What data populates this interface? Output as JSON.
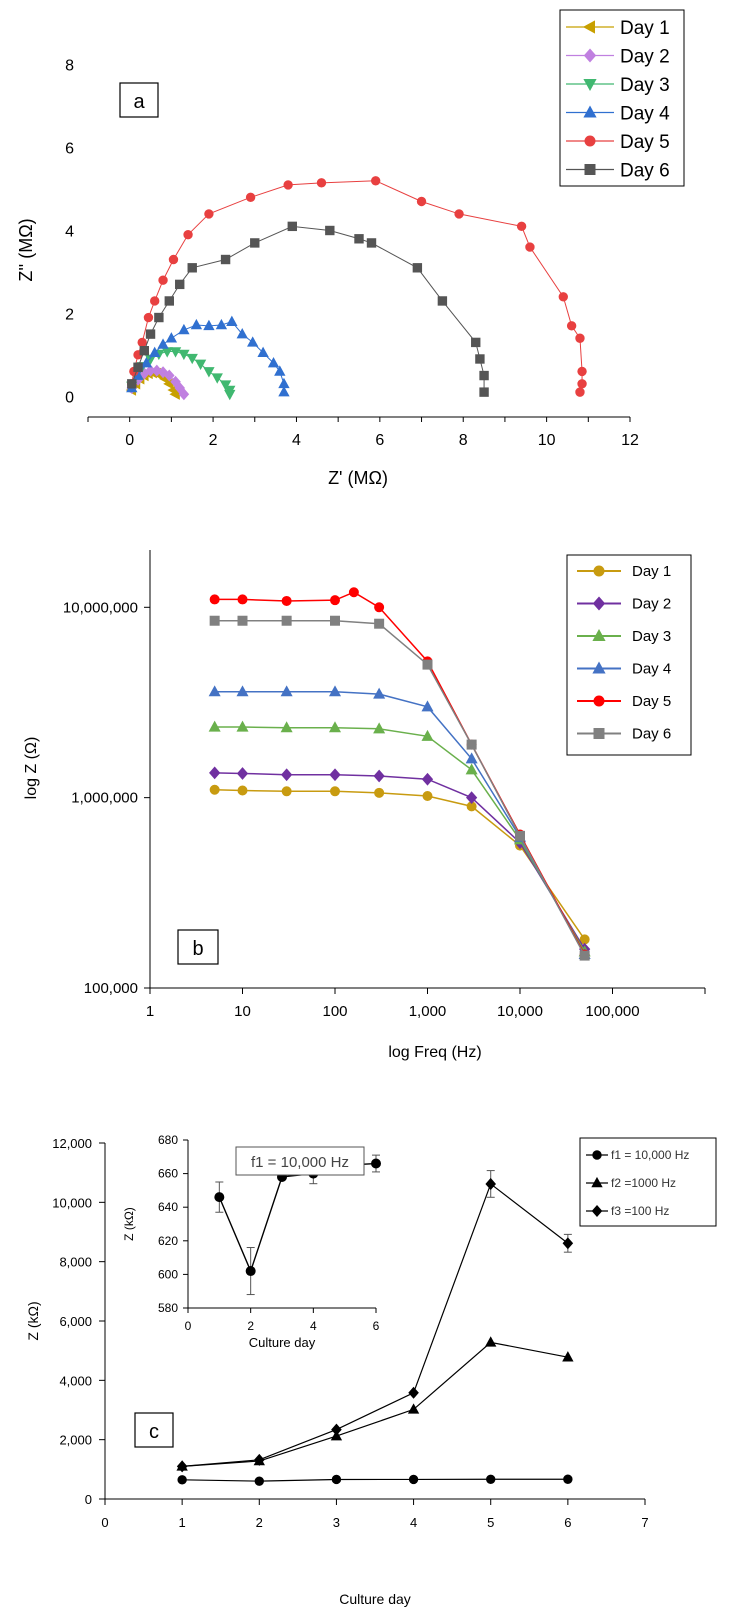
{
  "chart_data": [
    {
      "type": "scatter",
      "panel_label": "a",
      "xlabel": "Z' (MΩ)",
      "ylabel": "Z'' (MΩ)",
      "xlim": [
        -1,
        12
      ],
      "ylim": [
        -0.5,
        8.5
      ],
      "xticks": [
        0,
        2,
        4,
        6,
        8,
        10,
        12
      ],
      "yticks": [
        0,
        2,
        4,
        6,
        8
      ],
      "legend_position": "top-right",
      "series": [
        {
          "name": "Day 1",
          "color": "#c8a000",
          "marker": "triangle-left",
          "x": [
            0.05,
            0.15,
            0.25,
            0.35,
            0.45,
            0.55,
            0.65,
            0.75,
            0.85,
            0.95,
            1.05,
            1.1
          ],
          "y": [
            0.15,
            0.3,
            0.42,
            0.5,
            0.55,
            0.57,
            0.55,
            0.5,
            0.42,
            0.3,
            0.15,
            0.05
          ]
        },
        {
          "name": "Day 2",
          "color": "#c080e0",
          "marker": "diamond",
          "x": [
            0.05,
            0.2,
            0.35,
            0.5,
            0.65,
            0.8,
            0.95,
            1.1,
            1.2,
            1.3
          ],
          "y": [
            0.2,
            0.4,
            0.55,
            0.62,
            0.62,
            0.58,
            0.5,
            0.35,
            0.2,
            0.05
          ]
        },
        {
          "name": "Day 3",
          "color": "#40b870",
          "marker": "triangle-down",
          "x": [
            0.05,
            0.15,
            0.3,
            0.5,
            0.7,
            0.9,
            1.1,
            1.3,
            1.5,
            1.7,
            1.9,
            2.1,
            2.3,
            2.4,
            2.4
          ],
          "y": [
            0.25,
            0.5,
            0.72,
            0.9,
            1.02,
            1.08,
            1.08,
            1.02,
            0.92,
            0.78,
            0.6,
            0.45,
            0.28,
            0.15,
            0.05
          ]
        },
        {
          "name": "Day 4",
          "color": "#3070d0",
          "marker": "triangle-up",
          "x": [
            0.05,
            0.2,
            0.4,
            0.6,
            0.8,
            1.0,
            1.3,
            1.6,
            1.9,
            2.2,
            2.45,
            2.7,
            2.95,
            3.2,
            3.45,
            3.6,
            3.7,
            3.7
          ],
          "y": [
            0.2,
            0.5,
            0.8,
            1.05,
            1.25,
            1.4,
            1.6,
            1.72,
            1.7,
            1.72,
            1.8,
            1.5,
            1.3,
            1.05,
            0.8,
            0.6,
            0.3,
            0.1
          ]
        },
        {
          "name": "Day 5",
          "color": "#e84040",
          "marker": "circle",
          "x": [
            0.05,
            0.1,
            0.2,
            0.3,
            0.45,
            0.6,
            0.8,
            1.05,
            1.4,
            1.9,
            2.9,
            3.8,
            4.6,
            5.9,
            7.0,
            7.9,
            9.4,
            9.6,
            10.4,
            10.6,
            10.8,
            10.85,
            10.85,
            10.8
          ],
          "y": [
            0.3,
            0.6,
            1.0,
            1.3,
            1.9,
            2.3,
            2.8,
            3.3,
            3.9,
            4.4,
            4.8,
            5.1,
            5.15,
            5.2,
            4.7,
            4.4,
            4.1,
            3.6,
            2.4,
            1.7,
            1.4,
            0.6,
            0.3,
            0.1
          ]
        },
        {
          "name": "Day 6",
          "color": "#555555",
          "marker": "square",
          "x": [
            0.05,
            0.2,
            0.35,
            0.5,
            0.7,
            0.95,
            1.2,
            1.5,
            2.3,
            3.0,
            3.9,
            4.8,
            5.5,
            5.8,
            6.9,
            7.5,
            8.3,
            8.4,
            8.5,
            8.5
          ],
          "y": [
            0.3,
            0.7,
            1.1,
            1.5,
            1.9,
            2.3,
            2.7,
            3.1,
            3.3,
            3.7,
            4.1,
            4.0,
            3.8,
            3.7,
            3.1,
            2.3,
            1.3,
            0.9,
            0.5,
            0.1
          ]
        }
      ]
    },
    {
      "type": "line",
      "panel_label": "b",
      "xlabel": "log Freq (Hz)",
      "ylabel": "log Z (Ω)",
      "xscale": "log",
      "yscale": "log",
      "xlim": [
        1,
        1000000
      ],
      "ylim": [
        100000,
        20000000
      ],
      "xticks": [
        1,
        10,
        100,
        1000,
        10000,
        100000
      ],
      "xtick_labels": [
        "1",
        "10",
        "100",
        "1,000",
        "10,000",
        "100,000"
      ],
      "yticks": [
        100000,
        1000000,
        10000000
      ],
      "ytick_labels": [
        "100,000",
        "1,000,000",
        "10,000,000"
      ],
      "legend_position": "top-right",
      "series": [
        {
          "name": "Day 1",
          "color": "#c89b10",
          "marker": "circle",
          "x": [
            5,
            10,
            30,
            100,
            300,
            1000,
            3000,
            10000,
            50000
          ],
          "y": [
            1100000,
            1090000,
            1080000,
            1080000,
            1060000,
            1020000,
            900000,
            560000,
            180000
          ]
        },
        {
          "name": "Day 2",
          "color": "#7030a0",
          "marker": "diamond",
          "x": [
            5,
            10,
            30,
            100,
            300,
            1000,
            3000,
            10000,
            50000
          ],
          "y": [
            1350000,
            1340000,
            1320000,
            1320000,
            1300000,
            1250000,
            1000000,
            580000,
            160000
          ]
        },
        {
          "name": "Day 3",
          "color": "#6ab04c",
          "marker": "triangle-up",
          "x": [
            5,
            10,
            30,
            100,
            300,
            1000,
            3000,
            10000,
            50000
          ],
          "y": [
            2350000,
            2350000,
            2330000,
            2330000,
            2300000,
            2100000,
            1400000,
            600000,
            155000
          ]
        },
        {
          "name": "Day 4",
          "color": "#4472c4",
          "marker": "triangle-up",
          "x": [
            5,
            10,
            30,
            100,
            300,
            1000,
            3000,
            10000,
            50000
          ],
          "y": [
            3600000,
            3600000,
            3600000,
            3600000,
            3500000,
            3000000,
            1600000,
            620000,
            150000
          ]
        },
        {
          "name": "Day 5",
          "color": "#ff0000",
          "marker": "circle",
          "x": [
            5,
            10,
            30,
            100,
            160,
            300,
            1000,
            3000,
            10000,
            50000
          ],
          "y": [
            11000000,
            11000000,
            10800000,
            10900000,
            12000000,
            10000000,
            5200000,
            1900000,
            640000,
            150000
          ]
        },
        {
          "name": "Day 6",
          "color": "#808080",
          "marker": "square",
          "x": [
            5,
            10,
            30,
            100,
            300,
            1000,
            3000,
            10000,
            50000
          ],
          "y": [
            8500000,
            8500000,
            8500000,
            8500000,
            8200000,
            5000000,
            1900000,
            630000,
            148000
          ]
        }
      ]
    },
    {
      "type": "line",
      "panel_label": "c",
      "xlabel": "Culture day",
      "ylabel": "Z  (kΩ)",
      "xlim": [
        0,
        7
      ],
      "ylim": [
        0,
        12000
      ],
      "xticks": [
        0,
        1,
        2,
        3,
        4,
        5,
        6,
        7
      ],
      "yticks": [
        0,
        2000,
        4000,
        6000,
        8000,
        10000,
        12000
      ],
      "ytick_labels": [
        "0",
        "2,000",
        "4,000",
        "6,000",
        "8,000",
        "10,000",
        "12,000"
      ],
      "legend_position": "top-right",
      "series": [
        {
          "name": "f1 = 10,000 Hz",
          "marker": "circle",
          "x": [
            1,
            2,
            3,
            4,
            5,
            6
          ],
          "y": [
            646,
            602,
            658,
            660,
            665,
            666
          ]
        },
        {
          "name": "f2 =1000 Hz",
          "marker": "triangle-up",
          "x": [
            1,
            2,
            3,
            4,
            5,
            6
          ],
          "y": [
            1100,
            1280,
            2120,
            3020,
            5280,
            4780
          ]
        },
        {
          "name": "f3 =100 Hz",
          "marker": "diamond",
          "x": [
            1,
            2,
            3,
            4,
            5,
            6
          ],
          "y": [
            1100,
            1320,
            2340,
            3580,
            10620,
            8620
          ],
          "error": [
            0,
            0,
            0,
            0,
            450,
            300
          ]
        }
      ],
      "inset": {
        "title": "f1 = 10,000 Hz",
        "xlabel": "Culture day",
        "ylabel": "Z (kΩ)",
        "xlim": [
          0,
          6
        ],
        "ylim": [
          580,
          680
        ],
        "xticks": [
          0,
          2,
          4,
          6
        ],
        "yticks": [
          580,
          600,
          620,
          640,
          660,
          680
        ],
        "x": [
          1,
          2,
          3,
          4,
          5,
          6
        ],
        "y": [
          646,
          602,
          658,
          660,
          665,
          666
        ],
        "error": [
          9,
          14,
          0,
          6,
          0,
          5
        ]
      }
    }
  ]
}
